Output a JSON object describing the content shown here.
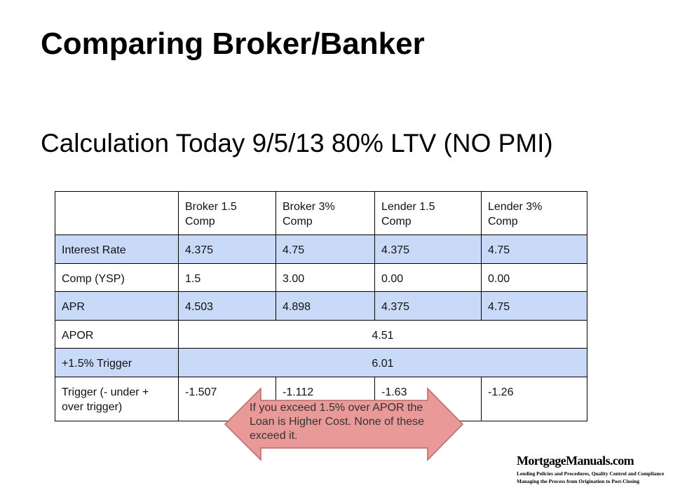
{
  "title": "Comparing Broker/Banker",
  "subtitle": "Calculation Today 9/5/13 80% LTV (NO PMI)",
  "table": {
    "columns": [
      "Broker 1.5 Comp",
      "Broker 3% Comp",
      "Lender 1.5 Comp",
      "Lender 3% Comp"
    ],
    "rows": [
      {
        "label": "Interest Rate",
        "values": [
          "4.375",
          "4.75",
          "4.375",
          "4.75"
        ]
      },
      {
        "label": "Comp (YSP)",
        "values": [
          "1.5",
          "3.00",
          "0.00",
          "0.00"
        ]
      },
      {
        "label": "APR",
        "values": [
          "4.503",
          "4.898",
          "4.375",
          "4.75"
        ]
      },
      {
        "label": "APOR",
        "values": [
          "4.51"
        ]
      },
      {
        "label": "+1.5% Trigger",
        "values": [
          "6.01"
        ]
      },
      {
        "label": "Trigger (- under + over trigger)",
        "values": [
          "-1.507",
          "-1.112",
          "-1.63",
          "-1.26"
        ]
      }
    ]
  },
  "callout": "If you exceed 1.5% over APOR the Loan is Higher Cost.  None of these exceed it.",
  "logo": {
    "name": "MortgageManuals.com",
    "lines": [
      "Lending Policies and Procedures, Quality Control and Compliance",
      "Managing the Process from Origination to Post-Closing"
    ]
  }
}
